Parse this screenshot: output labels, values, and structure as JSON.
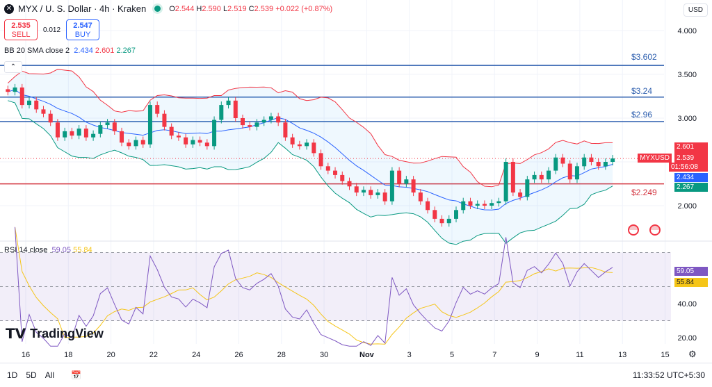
{
  "header": {
    "symbol": "MYX / U. S. Dollar · 4h · Kraken",
    "open_label": "O",
    "open": "2.544",
    "high_label": "H",
    "high": "2.590",
    "low_label": "L",
    "low": "2.519",
    "close_label": "C",
    "close": "2.539",
    "change": "+0.022 (+0.87%)"
  },
  "trade": {
    "sell_price": "2.535",
    "sell_label": "SELL",
    "spread": "0.012",
    "buy_price": "2.547",
    "buy_label": "BUY"
  },
  "bb_legend": {
    "label": "BB 20 SMA close 2",
    "basis": "2.434",
    "upper": "2.601",
    "lower": "2.267"
  },
  "rsi_legend": {
    "label": "RSI 14 close",
    "rsi": "59.05",
    "ma": "55.84"
  },
  "currency": "USD",
  "price_axis": [
    "4.000",
    "3.500",
    "3.000",
    "2.000"
  ],
  "rsi_axis": [
    "40.00",
    "20.00"
  ],
  "time_axis": [
    "16",
    "18",
    "20",
    "22",
    "24",
    "26",
    "28",
    "30",
    "Nov",
    "3",
    "5",
    "7",
    "9",
    "11",
    "13",
    "15"
  ],
  "levels": [
    {
      "label": "$3.602",
      "value": 3.602,
      "color": "#2a5cad"
    },
    {
      "label": "$3.24",
      "value": 3.24,
      "color": "#2a5cad"
    },
    {
      "label": "$2.96",
      "value": 2.96,
      "color": "#2a5cad"
    },
    {
      "label": "$2.249",
      "value": 2.249,
      "color": "#d3343f"
    }
  ],
  "tags": {
    "symbol": "MYXUSD",
    "upper": "2.601",
    "last": "2.539",
    "countdown": "01:56:08",
    "basis": "2.434",
    "lower": "2.267",
    "rsi": "59.05",
    "rsi_ma": "55.84"
  },
  "colors": {
    "up": "#089981",
    "down": "#f23645",
    "bb_upper": "#f23645",
    "bb_basis": "#2962ff",
    "bb_lower": "#089981",
    "rsi": "#7e57c2",
    "rsi_ma": "#f5c518"
  },
  "chart_data": {
    "type": "candlestick",
    "start": "Oct 15",
    "interval": "8h",
    "closes": [
      3.3,
      3.35,
      3.15,
      3.2,
      3.1,
      3.05,
      2.95,
      2.78,
      2.85,
      2.8,
      2.88,
      2.78,
      2.82,
      2.92,
      2.95,
      2.85,
      2.72,
      2.68,
      2.75,
      2.7,
      3.15,
      3.05,
      2.9,
      2.8,
      2.78,
      2.7,
      2.75,
      2.72,
      2.68,
      2.98,
      3.15,
      3.2,
      3.0,
      2.92,
      2.9,
      2.95,
      2.98,
      3.02,
      2.95,
      2.78,
      2.7,
      2.68,
      2.72,
      2.6,
      2.45,
      2.4,
      2.35,
      2.28,
      2.22,
      2.15,
      2.18,
      2.12,
      2.15,
      2.05,
      2.4,
      2.25,
      2.3,
      2.15,
      2.05,
      1.95,
      1.85,
      1.8,
      1.85,
      1.95,
      2.05,
      2.0,
      2.02,
      2.0,
      2.03,
      2.05,
      2.5,
      2.15,
      2.1,
      2.3,
      2.35,
      2.3,
      2.4,
      2.55,
      2.48,
      2.3,
      2.45,
      2.55,
      2.5,
      2.45,
      2.5,
      2.539
    ],
    "ylim": [
      1.8,
      4.1
    ]
  },
  "bottom": {
    "ranges": [
      "1D",
      "5D",
      "All"
    ],
    "clock": "11:33:52 UTC+5:30"
  },
  "brand": "TradingView"
}
